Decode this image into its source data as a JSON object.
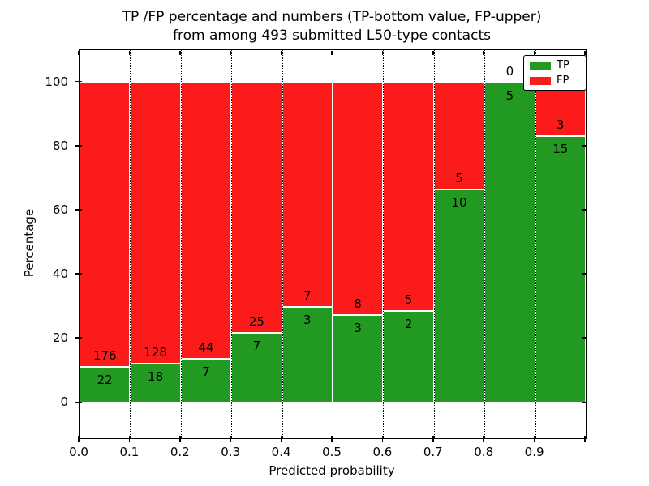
{
  "title": {
    "line1": "TP /FP percentage and numbers (TP-bottom value, FP-upper)",
    "line2": "from among 493 submitted L50-type contacts"
  },
  "chart_data": {
    "type": "bar",
    "stacked": true,
    "normalized_to_percent": true,
    "title": "TP /FP percentage and numbers (TP-bottom value, FP-upper) from among 493 submitted L50-type contacts",
    "xlabel": "Predicted probability",
    "ylabel": "Percentage",
    "total_contacts": 493,
    "bin_edges": [
      0.0,
      0.1,
      0.2,
      0.3,
      0.4,
      0.5,
      0.6,
      0.7,
      0.8,
      0.9,
      1.0
    ],
    "categories": [
      "0.0-0.1",
      "0.1-0.2",
      "0.2-0.3",
      "0.3-0.4",
      "0.4-0.5",
      "0.5-0.6",
      "0.6-0.7",
      "0.7-0.8",
      "0.8-0.9",
      "0.9-1.0"
    ],
    "series": [
      {
        "name": "TP",
        "color": "#229a22",
        "counts": [
          22,
          18,
          7,
          7,
          3,
          3,
          2,
          10,
          5,
          15
        ],
        "percent": [
          11.11,
          12.33,
          13.73,
          21.88,
          30.0,
          27.27,
          28.57,
          66.67,
          100.0,
          83.33
        ]
      },
      {
        "name": "FP",
        "color": "#fb1b1b",
        "counts": [
          176,
          128,
          44,
          25,
          7,
          8,
          5,
          5,
          0,
          3
        ],
        "percent": [
          88.89,
          87.67,
          86.27,
          78.12,
          70.0,
          72.73,
          71.43,
          33.33,
          0.0,
          16.67
        ]
      }
    ],
    "x_tick_labels": [
      "0.0",
      "0.1",
      "0.2",
      "0.3",
      "0.4",
      "0.5",
      "0.6",
      "0.7",
      "0.8",
      "0.9"
    ],
    "y_ticks": [
      0,
      20,
      40,
      60,
      80,
      100
    ],
    "ylim": [
      -11,
      110
    ],
    "xlim": [
      0.0,
      1.0
    ],
    "grid": true,
    "grid_style": "dotted",
    "bar_edge_color": "#ffffff",
    "legend": {
      "position": "upper right",
      "entries": [
        {
          "label": "TP",
          "color": "#229a22"
        },
        {
          "label": "FP",
          "color": "#fb1b1b"
        }
      ]
    }
  }
}
